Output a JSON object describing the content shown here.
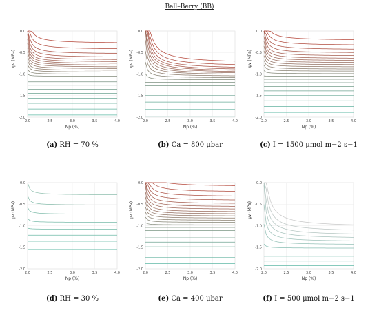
{
  "title": "Ball–Berry (BB)",
  "chart_data": [
    {
      "type": "contour",
      "panel": "a",
      "caption_label": "(a)",
      "caption_text": "RH = 70 %",
      "xlabel": "Np (%)",
      "ylabel": "ψv (MPa)",
      "xlim": [
        2.0,
        4.0
      ],
      "ylim": [
        -2.0,
        0.0
      ],
      "xticks": [
        "2.0",
        "2.5",
        "3.0",
        "3.5",
        "4.0"
      ],
      "yticks": [
        "-2.0",
        "-1.5",
        "-1.0",
        "-0.5",
        "0.0"
      ],
      "color_high": "#b5473a",
      "color_low": "#5fb9a6",
      "contour_levels_psi_at_np4": [
        -0.27,
        -0.41,
        -0.52,
        -0.6,
        -0.66,
        -0.71,
        -0.75,
        -0.79,
        -0.83,
        -0.87,
        -0.91,
        -0.95,
        -1.0,
        -1.05,
        -1.11,
        -1.18,
        -1.26,
        -1.35,
        -1.45,
        -1.56,
        -1.68,
        -1.81,
        -1.95
      ],
      "curvature": 0.35
    },
    {
      "type": "contour",
      "panel": "b",
      "caption_label": "(b)",
      "caption_text": "Ca = 800 μbar",
      "xlabel": "Np (%)",
      "ylabel": "ψv (MPa)",
      "xlim": [
        2.0,
        4.0
      ],
      "ylim": [
        -2.0,
        0.0
      ],
      "xticks": [
        "2.0",
        "2.5",
        "3.0",
        "3.5",
        "4.0"
      ],
      "yticks": [
        "-2.0",
        "-1.5",
        "-1.0",
        "-0.5",
        "0.0"
      ],
      "color_high": "#b5473a",
      "color_low": "#5fb9a6",
      "contour_levels_psi_at_np4": [
        -0.7,
        -0.78,
        -0.84,
        -0.88,
        -0.91,
        -0.94,
        -0.97,
        -1.0,
        -1.04,
        -1.08,
        -1.13,
        -1.19,
        -1.27,
        -1.37,
        -1.5,
        -1.65,
        -1.82,
        -1.98
      ],
      "curvature": 1.0
    },
    {
      "type": "contour",
      "panel": "c",
      "caption_label": "(c)",
      "caption_text": "I = 1500 μmol m−2 s−1",
      "xlabel": "Np (%)",
      "ylabel": "ψv (MPa)",
      "xlim": [
        2.0,
        4.0
      ],
      "ylim": [
        -2.0,
        0.0
      ],
      "xticks": [
        "2.0",
        "2.5",
        "3.0",
        "3.5",
        "4.0"
      ],
      "yticks": [
        "-2.0",
        "-1.5",
        "-1.0",
        "-0.5",
        "0.0"
      ],
      "color_high": "#b5473a",
      "color_low": "#5fb9a6",
      "contour_levels_psi_at_np4": [
        -0.2,
        -0.32,
        -0.42,
        -0.5,
        -0.57,
        -0.63,
        -0.68,
        -0.73,
        -0.78,
        -0.83,
        -0.88,
        -0.93,
        -0.99,
        -1.05,
        -1.12,
        -1.2,
        -1.29,
        -1.39,
        -1.5,
        -1.62,
        -1.75,
        -1.89
      ],
      "curvature": 0.35
    },
    {
      "type": "contour",
      "panel": "d",
      "caption_label": "(d)",
      "caption_text": "RH = 30 %",
      "xlabel": "Np (%)",
      "ylabel": "ψv (MPa)",
      "xlim": [
        2.0,
        4.0
      ],
      "ylim": [
        -2.0,
        0.0
      ],
      "xticks": [
        "2.0",
        "2.5",
        "3.0",
        "3.5",
        "4.0"
      ],
      "yticks": [
        "-2.0",
        "-1.5",
        "-1.0",
        "-0.5",
        "0.0"
      ],
      "color_high": "#8fbfae",
      "color_low": "#5fb9a6",
      "contour_levels_psi_at_np4": [
        -0.28,
        -0.52,
        -0.73,
        -0.92,
        -1.08,
        -1.22,
        -1.36,
        -1.55
      ],
      "curvature": 0.12
    },
    {
      "type": "contour",
      "panel": "e",
      "caption_label": "(e)",
      "caption_text": "Ca = 400 μbar",
      "xlabel": "Np (%)",
      "ylabel": "ψv (MPa)",
      "xlim": [
        2.0,
        4.0
      ],
      "ylim": [
        -2.0,
        0.0
      ],
      "xticks": [
        "2.0",
        "2.5",
        "3.0",
        "3.5",
        "4.0"
      ],
      "yticks": [
        "-2.0",
        "-1.5",
        "-1.0",
        "-0.5",
        "0.0"
      ],
      "color_high": "#b5473a",
      "color_low": "#5fb9a6",
      "contour_levels_psi_at_np4": [
        -0.07,
        -0.2,
        -0.31,
        -0.4,
        -0.48,
        -0.55,
        -0.61,
        -0.67,
        -0.72,
        -0.77,
        -0.82,
        -0.87,
        -0.92,
        -0.98,
        -1.04,
        -1.11,
        -1.19,
        -1.28,
        -1.38,
        -1.49,
        -1.61,
        -1.74,
        -1.88
      ],
      "curvature": 0.4
    },
    {
      "type": "contour",
      "panel": "f",
      "caption_label": "(f)",
      "caption_text": "I = 500 μmol m−2 s−1",
      "xlabel": "Np (%)",
      "ylabel": "ψv (MPa)",
      "xlim": [
        2.0,
        4.0
      ],
      "ylim": [
        -2.0,
        0.0
      ],
      "xticks": [
        "2.0",
        "2.5",
        "3.0",
        "3.5",
        "4.0"
      ],
      "yticks": [
        "-2.0",
        "-1.5",
        "-1.0",
        "-0.5",
        "0.0"
      ],
      "color_high": "#c8c8c8",
      "color_low": "#5fb9a6",
      "contour_levels_psi_at_np4": [
        -0.98,
        -1.1,
        -1.19,
        -1.27,
        -1.35,
        -1.43,
        -1.52,
        -1.61,
        -1.71,
        -1.82,
        -1.93
      ],
      "curvature": 1.0
    }
  ]
}
